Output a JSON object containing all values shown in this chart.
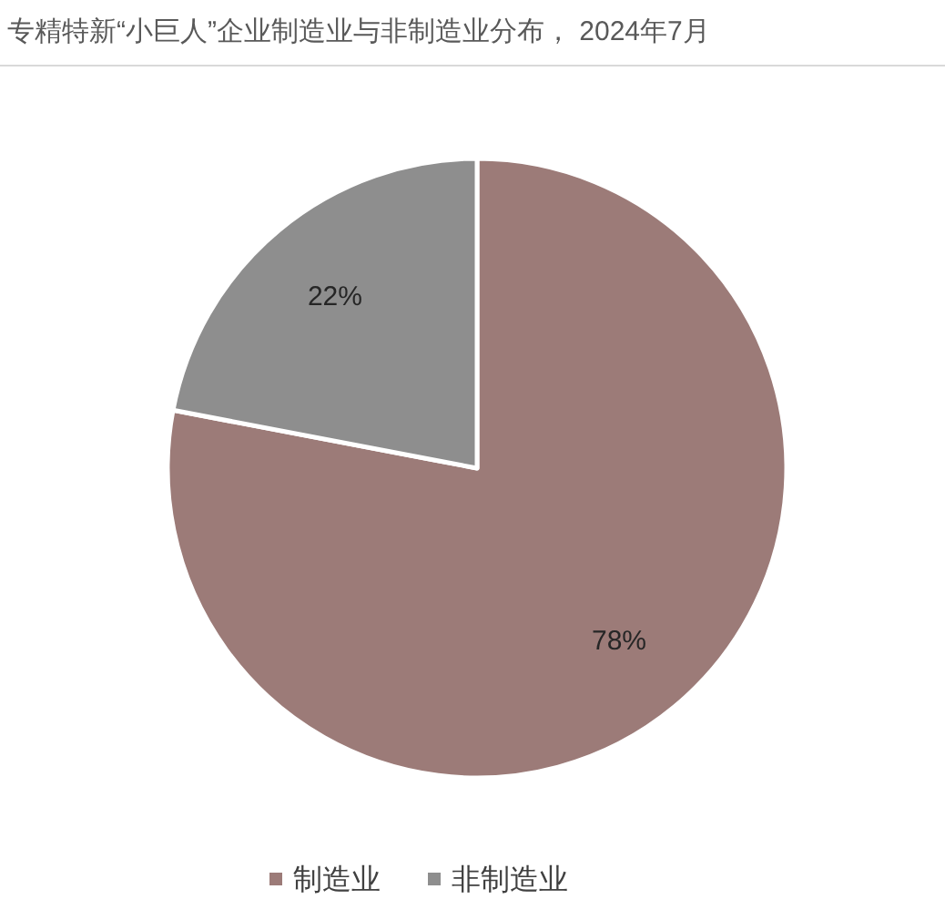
{
  "chart_data": {
    "type": "pie",
    "title": "专精特新“小巨人”企业制造业与非制造业分布， 2024年7月",
    "categories": [
      "制造业",
      "非制造业"
    ],
    "values": [
      78,
      22
    ],
    "colors": [
      "#9c7b78",
      "#8e8e8e"
    ],
    "value_labels": [
      "78%",
      "22%"
    ],
    "legend": "bottom"
  }
}
